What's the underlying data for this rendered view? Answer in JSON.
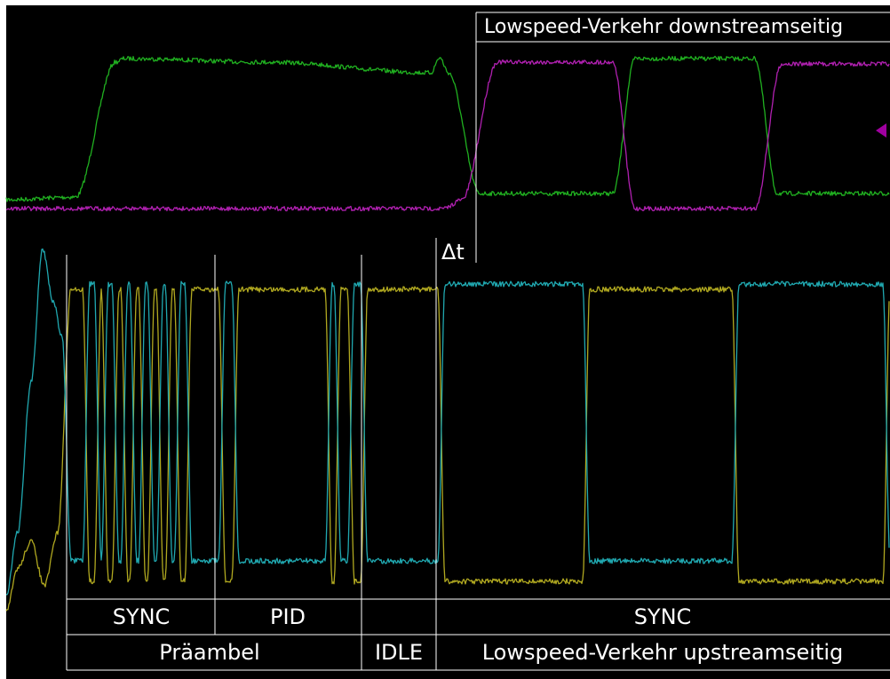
{
  "downstream_label": "Lowspeed-Verkehr downstreamseitig",
  "delta_label": "Δt",
  "segments": [
    "SYNC",
    "PID",
    "SYNC"
  ],
  "groups": [
    "Präambel",
    "IDLE",
    "Lowspeed-Verkehr upstreamseitig"
  ]
}
